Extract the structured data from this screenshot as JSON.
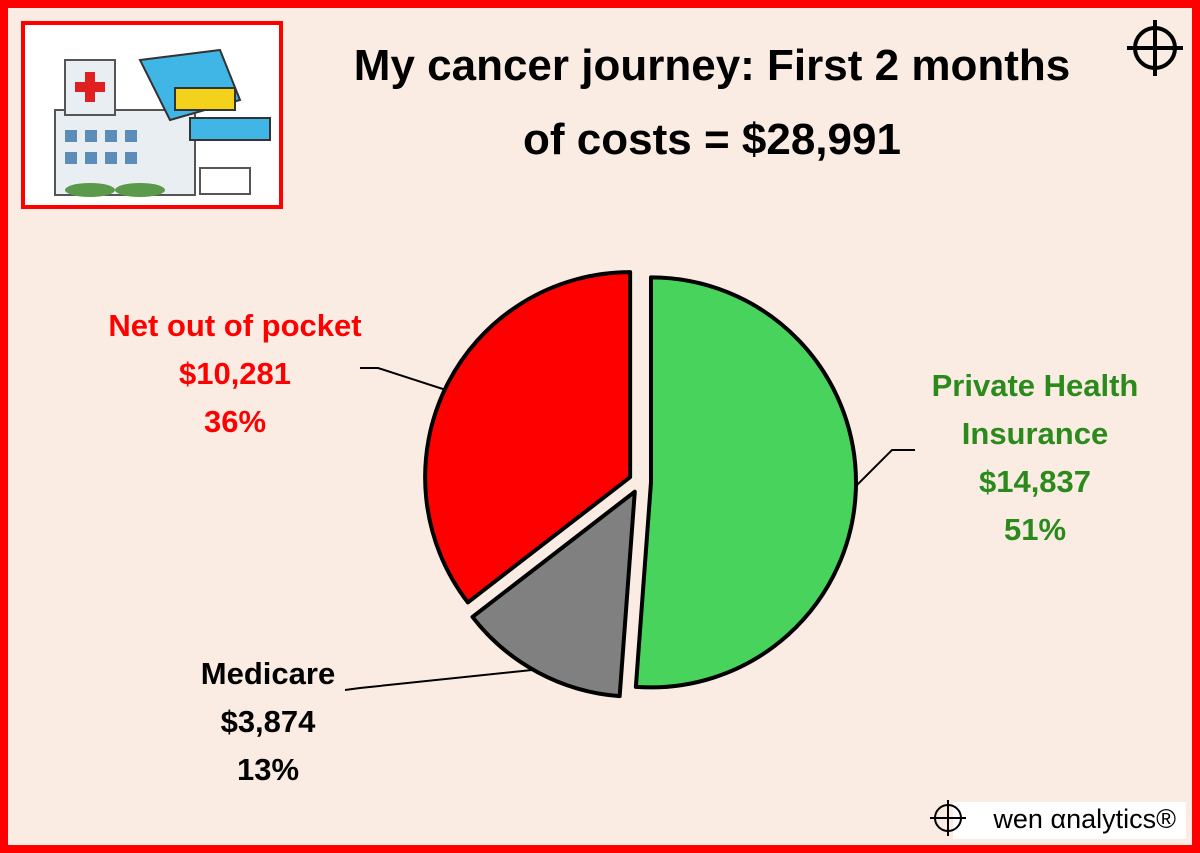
{
  "chart_data": {
    "type": "pie",
    "title": [
      "My cancer journey: First 2 months",
      "of costs  =  $28,991"
    ],
    "categories": [
      "Private Health Insurance",
      "Medicare",
      "Net out of pocket"
    ],
    "values": [
      14837,
      3874,
      10281
    ],
    "value_labels": [
      "$14,837",
      "$3,874",
      "$10,281"
    ],
    "percent_labels": [
      "51%",
      "13%",
      "36%"
    ],
    "colors": [
      "#47d35c",
      "#808080",
      "#ff0000"
    ],
    "label_colors": [
      "#2b8a1c",
      "#000000",
      "#ff0000"
    ]
  },
  "brand": "wen αnalytics®"
}
